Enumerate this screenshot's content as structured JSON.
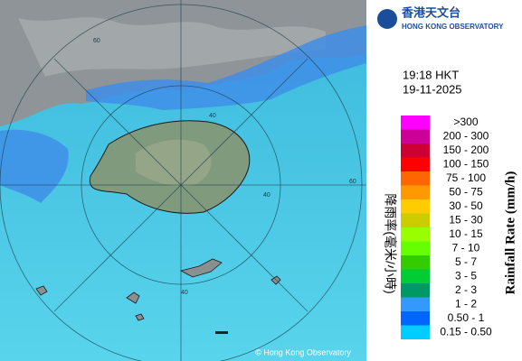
{
  "header": {
    "org_chinese": "香港天文台",
    "org_english": "HONG KONG OBSERVATORY"
  },
  "time": "19:18 HKT",
  "date": "19-11-2025",
  "legend": {
    "title_chinese": "降雨率(毫米/小時)",
    "title_english": "Rainfall Rate (mm/h)",
    "items": [
      {
        "label": ">300",
        "color": "#ff00ff"
      },
      {
        "label": "200 - 300",
        "color": "#cc0099"
      },
      {
        "label": "150 - 200",
        "color": "#cc0033"
      },
      {
        "label": "100 - 150",
        "color": "#ff0000"
      },
      {
        "label": "75 - 100",
        "color": "#ff6600"
      },
      {
        "label": "50 - 75",
        "color": "#ff9900"
      },
      {
        "label": "30 - 50",
        "color": "#ffcc00"
      },
      {
        "label": "15 - 30",
        "color": "#cccc00"
      },
      {
        "label": "10 - 15",
        "color": "#99ff00"
      },
      {
        "label": "7 - 10",
        "color": "#66ff00"
      },
      {
        "label": "5 - 7",
        "color": "#33cc00"
      },
      {
        "label": "3 - 5",
        "color": "#00cc33"
      },
      {
        "label": "2 - 3",
        "color": "#009966"
      },
      {
        "label": "1 - 2",
        "color": "#3399ff"
      },
      {
        "label": "0.50 - 1",
        "color": "#0066ff"
      },
      {
        "label": "0.15 - 0.50",
        "color": "#00ccff"
      }
    ]
  },
  "map": {
    "ring_labels": [
      "60",
      "40",
      "60",
      "40",
      "40"
    ],
    "copyright": "© Hong Kong Observatory"
  }
}
